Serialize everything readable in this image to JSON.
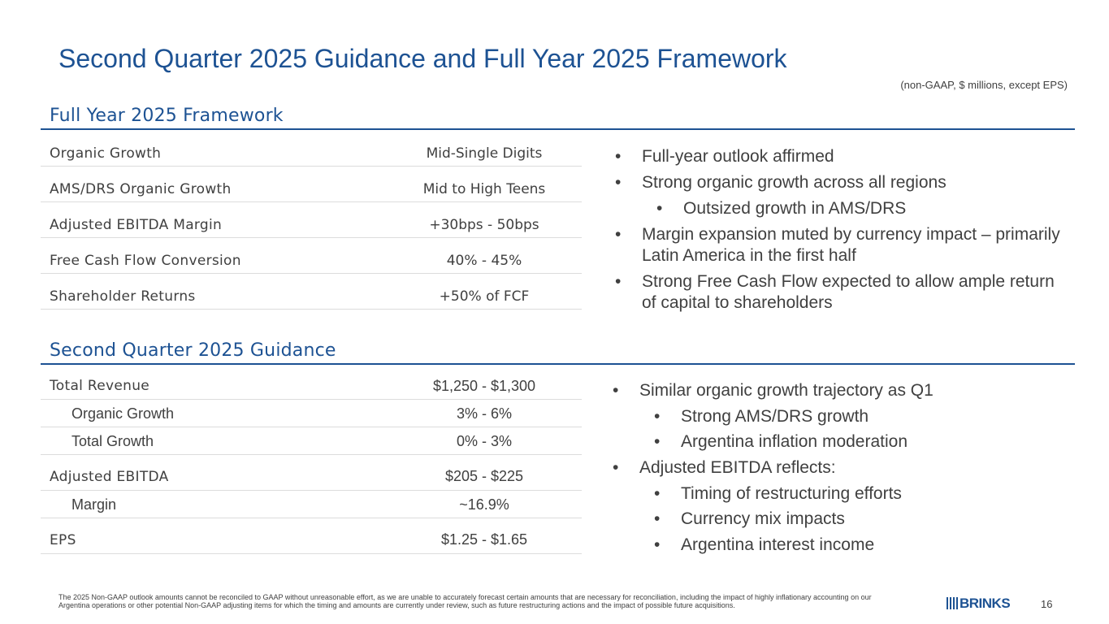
{
  "title": "Second Quarter 2025 Guidance and Full Year 2025 Framework",
  "units_note": "(non-GAAP, $ millions, except EPS)",
  "full_year": {
    "heading": "Full Year 2025 Framework",
    "rows": [
      {
        "label": "Organic Growth",
        "value": "Mid-Single Digits"
      },
      {
        "label": "AMS/DRS Organic Growth",
        "value": "Mid to High Teens"
      },
      {
        "label": "Adjusted EBITDA Margin",
        "value": "+30bps - 50bps"
      },
      {
        "label": "Free Cash Flow Conversion",
        "value": "40% - 45%"
      },
      {
        "label": "Shareholder Returns",
        "value": "+50% of FCF"
      }
    ],
    "bullets": [
      {
        "text": "Full-year outlook affirmed",
        "level": 1
      },
      {
        "text": "Strong organic growth across all regions",
        "level": 1
      },
      {
        "text": "Outsized growth in AMS/DRS",
        "level": 2
      },
      {
        "text": "Margin expansion muted by currency impact – primarily Latin America in the first half",
        "level": 1
      },
      {
        "text": "Strong Free Cash Flow expected to allow ample return of capital to shareholders",
        "level": 1
      }
    ]
  },
  "q2": {
    "heading": "Second Quarter 2025 Guidance",
    "rows": [
      {
        "label": "Total Revenue",
        "value": "$1,250 - $1,300"
      },
      {
        "label": "Organic Growth",
        "value": "3% - 6%"
      },
      {
        "label": "Total Growth",
        "value": "0% - 3%"
      },
      {
        "label": "Adjusted EBITDA",
        "value": "$205 - $225"
      },
      {
        "label": "Margin",
        "value": "~16.9%"
      },
      {
        "label": "EPS",
        "value": "$1.25 - $1.65"
      }
    ],
    "bullets": [
      {
        "text": "Similar organic growth trajectory as Q1",
        "level": 1
      },
      {
        "text": "Strong AMS/DRS growth",
        "level": 2
      },
      {
        "text": "Argentina inflation moderation",
        "level": 2
      },
      {
        "text": "Adjusted EBITDA reflects:",
        "level": 1
      },
      {
        "text": "Timing of restructuring efforts",
        "level": 2
      },
      {
        "text": "Currency mix impacts",
        "level": 2
      },
      {
        "text": "Argentina interest income",
        "level": 2
      }
    ]
  },
  "footnote": "The 2025 Non-GAAP outlook amounts cannot be reconciled to GAAP without unreasonable effort, as we are unable to accurately forecast certain amounts that are necessary for reconciliation, including the impact of highly inflationary accounting on our Argentina operations or other potential Non-GAAP adjusting items for which the timing and amounts are currently under review, such as future restructuring actions and the impact of possible future acquisitions.",
  "logo": "BRINKS",
  "page_number": "16",
  "colors": {
    "accent": "#1d5293",
    "text": "#404040",
    "divider": "#dcdcdc"
  }
}
